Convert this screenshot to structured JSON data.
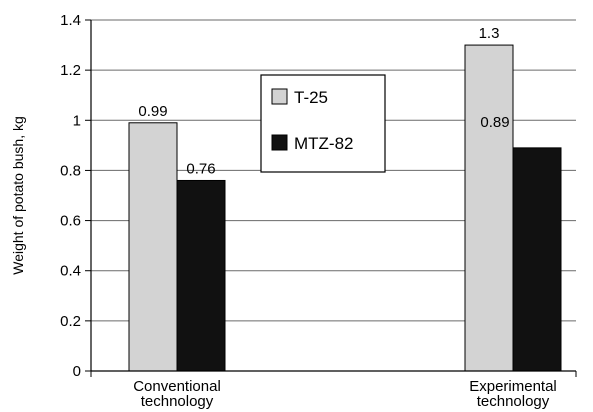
{
  "chart_data": {
    "type": "bar",
    "categories": [
      [
        "Conventional",
        "technology"
      ],
      [
        "Experimental",
        "technology"
      ]
    ],
    "series": [
      {
        "name": "T-25",
        "values": [
          0.99,
          1.3
        ],
        "color": "#d3d3d3"
      },
      {
        "name": "MTZ-82",
        "values": [
          0.76,
          0.89
        ],
        "color": "#111111"
      }
    ],
    "ylabel": "Weight of potato bush, kg",
    "ylim": [
      0,
      1.4
    ],
    "yticks": [
      "0",
      "0.2",
      "0.4",
      "0.6",
      "0.8",
      "1",
      "1.2",
      "1.4"
    ],
    "data_labels": [
      [
        "0.99",
        "1.3"
      ],
      [
        "0.76",
        "0.89"
      ]
    ],
    "grid": true,
    "legend": "top-center"
  }
}
